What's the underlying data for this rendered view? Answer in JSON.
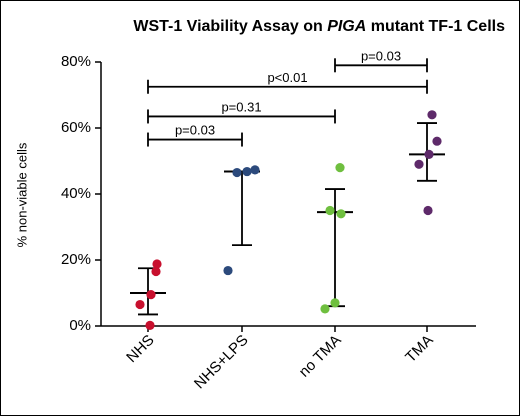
{
  "chart_data": {
    "type": "scatter",
    "title": {
      "prefix": "WST-1 Viability Assay on ",
      "italic": "PIGA",
      "suffix": " mutant TF-1 Cells"
    },
    "ylabel": "% non-viable cells",
    "xlabel": "",
    "ylim": [
      0,
      80
    ],
    "y_ticks": [
      0,
      20,
      40,
      60,
      80
    ],
    "y_tick_labels": [
      "0%",
      "20%",
      "40%",
      "60%",
      "80%"
    ],
    "grid": false,
    "categories": [
      "NHS",
      "NHS+LPS",
      "no TMA",
      "TMA"
    ],
    "groups": [
      {
        "category": "NHS",
        "color": "#c8102e",
        "points": [
          0.2,
          6.5,
          9.5,
          16.5,
          18.8
        ],
        "mean": 10.0,
        "error_low": 3.5,
        "error_high": 17.5
      },
      {
        "category": "NHS+LPS",
        "color": "#2c4a7c",
        "points": [
          16.8,
          46.5,
          46.8,
          47.3
        ],
        "mean": 46.8,
        "error_low": 24.5,
        "error_high": 46.8
      },
      {
        "category": "no TMA",
        "color": "#6fbf3f",
        "points": [
          5.2,
          7.0,
          34.0,
          35.0,
          48.0
        ],
        "mean": 34.5,
        "error_low": 6.0,
        "error_high": 41.5
      },
      {
        "category": "TMA",
        "color": "#5e2a6a",
        "points": [
          35.0,
          49.0,
          52.0,
          56.0,
          64.0
        ],
        "mean": 52.0,
        "error_low": 44.0,
        "error_high": 61.5
      }
    ],
    "comparisons": [
      {
        "from": "NHS",
        "to": "NHS+LPS",
        "label": "p=0.03",
        "y": 56.5
      },
      {
        "from": "NHS",
        "to": "no TMA",
        "label": "p=0.31",
        "y": 63.5
      },
      {
        "from": "NHS",
        "to": "TMA",
        "label": "p<0.01",
        "y": 72.5
      },
      {
        "from": "no TMA",
        "to": "TMA",
        "label": "p=0.03",
        "y": 79.0
      }
    ]
  }
}
